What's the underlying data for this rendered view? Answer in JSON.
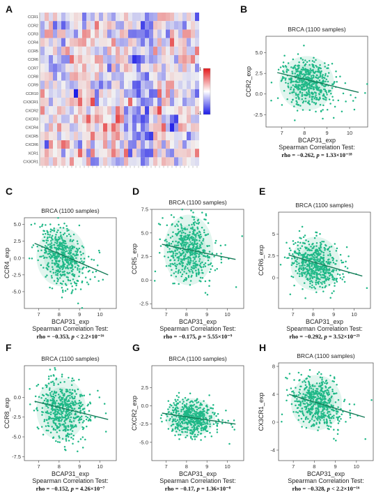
{
  "panels": [
    "A",
    "B",
    "C",
    "D",
    "E",
    "F",
    "G",
    "H"
  ],
  "heatmap": {
    "rows": [
      "CCR1",
      "CCR2",
      "CCR3",
      "CCR4",
      "CCR5",
      "CCR6",
      "CCR7",
      "CCR8",
      "CCR9",
      "CCR10",
      "CX3CR1",
      "CXCR2",
      "CXCR3",
      "CXCR4",
      "CXCR5",
      "CXCR6",
      "XCR1",
      "CX3CR1"
    ],
    "legend_max": "1",
    "legend_min": "-1",
    "colors": {
      "pos": "#e31a1c",
      "neg": "#1a1ae6",
      "mid": "#f2f2f2"
    }
  },
  "chart_data": [
    {
      "panel": "B",
      "type": "scatter",
      "title": "BRCA (1100 samples)",
      "xlabel": "BCAP31_exp",
      "ylabel": "CCR2_exp",
      "xlim": [
        6.3,
        10.8
      ],
      "ylim": [
        -4.0,
        7.0
      ],
      "xticks": [
        7,
        8,
        9,
        10
      ],
      "yticks": [
        -2.5,
        0.0,
        2.5,
        5.0
      ],
      "ytick_labels": [
        "-2.5",
        "0.0",
        "2.5",
        "5.0"
      ],
      "fit_line": [
        [
          6.8,
          2.6
        ],
        [
          10.4,
          0.2
        ]
      ],
      "center": [
        8.1,
        1.3
      ],
      "spread": [
        0.55,
        1.5
      ],
      "stat_title": "Spearman Correlation Test:",
      "rho": "−0.262",
      "p": "1.33×10⁻¹⁸"
    },
    {
      "panel": "C",
      "type": "scatter",
      "title": "BRCA (1100 samples)",
      "xlabel": "BCAP31_exp",
      "ylabel": "CCR4_exp",
      "xlim": [
        6.3,
        10.8
      ],
      "ylim": [
        -7.5,
        6.0
      ],
      "xticks": [
        7,
        8,
        9,
        10
      ],
      "yticks": [
        -5.0,
        -2.5,
        0.0,
        2.5,
        5.0
      ],
      "ytick_labels": [
        "-5.0",
        "-2.5",
        "0.0",
        "2.5",
        "5.0"
      ],
      "fit_line": [
        [
          6.8,
          2.2
        ],
        [
          10.4,
          -2.5
        ]
      ],
      "center": [
        8.1,
        0.2
      ],
      "spread": [
        0.55,
        2.0
      ],
      "stat_title": "Spearman Correlation Test:",
      "rho": "−0.353",
      "p": "< 2.2×10⁻¹⁶"
    },
    {
      "panel": "D",
      "type": "scatter",
      "title": "BRCA (1100 samples)",
      "xlabel": "BCAP31_exp",
      "ylabel": "CCR5_exp",
      "xlim": [
        6.3,
        10.8
      ],
      "ylim": [
        -3.0,
        7.5
      ],
      "xticks": [
        7,
        8,
        9,
        10
      ],
      "yticks": [
        -2.5,
        0.0,
        2.5,
        5.0,
        7.5
      ],
      "ytick_labels": [
        "-2.5",
        "0.0",
        "2.5",
        "5.0",
        "7.5"
      ],
      "fit_line": [
        [
          6.8,
          3.8
        ],
        [
          10.4,
          2.2
        ]
      ],
      "center": [
        8.1,
        3.2
      ],
      "spread": [
        0.55,
        1.7
      ],
      "stat_title": "Spearman Correlation Test:",
      "rho": "−0.175",
      "p": "5.55×10⁻⁹"
    },
    {
      "panel": "E",
      "type": "scatter",
      "title": "BRCA (1100 samples)",
      "xlabel": "BCAP31_exp",
      "ylabel": "CCR6_exp",
      "xlim": [
        6.3,
        10.8
      ],
      "ylim": [
        -3.5,
        7.5
      ],
      "xticks": [
        7,
        8,
        9,
        10
      ],
      "yticks": [
        0,
        2.5,
        5
      ],
      "ytick_labels": [
        "0",
        "2.5",
        "5"
      ],
      "fit_line": [
        [
          6.8,
          2.6
        ],
        [
          10.4,
          0.2
        ]
      ],
      "center": [
        8.1,
        1.6
      ],
      "spread": [
        0.55,
        1.4
      ],
      "stat_title": "Spearman Correlation Test:",
      "rho": "−0.292",
      "p": "3.52×10⁻²³"
    },
    {
      "panel": "F",
      "type": "scatter",
      "title": "BRCA (1100 samples)",
      "xlabel": "BCAP31_exp",
      "ylabel": "CCR8_exp",
      "xlim": [
        6.3,
        10.8
      ],
      "ylim": [
        -8.0,
        4.0
      ],
      "xticks": [
        7,
        8,
        9,
        10
      ],
      "yticks": [
        -7.5,
        -5.0,
        -2.5,
        0.0
      ],
      "ytick_labels": [
        "-7.5",
        "-5.0",
        "-2.5",
        "0.0"
      ],
      "fit_line": [
        [
          6.8,
          -0.5
        ],
        [
          10.4,
          -2.8
        ]
      ],
      "center": [
        8.1,
        -1.5
      ],
      "spread": [
        0.55,
        1.8
      ],
      "stat_title": "Spearman Correlation Test:",
      "rho": "−0.152",
      "p": "4.26×10⁻⁷"
    },
    {
      "panel": "G",
      "type": "scatter",
      "title": "BRCA (1100 samples)",
      "xlabel": "BCAP31_exp",
      "ylabel": "CXCR2_exp",
      "xlim": [
        6.3,
        10.8
      ],
      "ylim": [
        -7.5,
        5.5
      ],
      "xticks": [
        7,
        8,
        9,
        10
      ],
      "yticks": [
        -5.0,
        -2.5,
        0.0,
        2.5
      ],
      "ytick_labels": [
        "-5.0",
        "-2.5",
        "0.0",
        "2.5"
      ],
      "fit_line": [
        [
          6.8,
          -1.0
        ],
        [
          10.4,
          -2.5
        ]
      ],
      "center": [
        8.2,
        -1.6
      ],
      "spread": [
        0.55,
        1.2
      ],
      "stat_title": "Spearman Correlation Test:",
      "rho": "−0.17",
      "p": "1.36×10⁻⁸"
    },
    {
      "panel": "H",
      "type": "scatter",
      "title": "BRCA (1100 samples)",
      "xlabel": "BCAP31_exp",
      "ylabel": "CX3CR1_exp",
      "xlim": [
        6.3,
        10.8
      ],
      "ylim": [
        -5.5,
        8.5
      ],
      "xticks": [
        7,
        8,
        9,
        10
      ],
      "yticks": [
        -4,
        0,
        4,
        8
      ],
      "ytick_labels": [
        "-4",
        "0",
        "4",
        "8"
      ],
      "fit_line": [
        [
          6.8,
          4.0
        ],
        [
          10.4,
          0.7
        ]
      ],
      "center": [
        8.1,
        2.8
      ],
      "spread": [
        0.55,
        1.8
      ],
      "stat_title": "Spearman Correlation Test:",
      "rho": "−0.328",
      "p": "< 2.2×10⁻¹⁶"
    }
  ]
}
